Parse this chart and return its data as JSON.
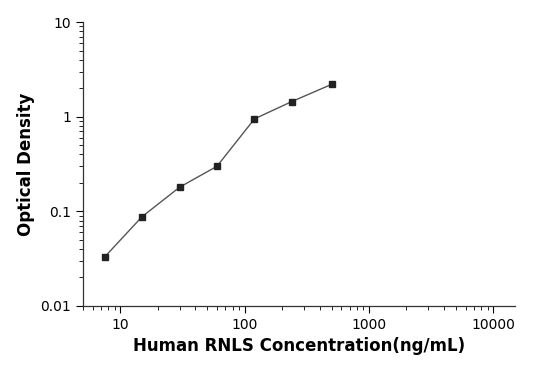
{
  "x": [
    7.5,
    15,
    30,
    60,
    120,
    240,
    500
  ],
  "y": [
    0.033,
    0.088,
    0.18,
    0.3,
    0.95,
    1.45,
    2.2
  ],
  "xlabel": "Human RNLS Concentration(ng/mL)",
  "ylabel": "Optical Density",
  "xlim": [
    5,
    15000
  ],
  "ylim": [
    0.01,
    10
  ],
  "line_color": "#555555",
  "marker_color": "#222222",
  "marker": "s",
  "marker_size": 5,
  "line_width": 1.0,
  "background_color": "#ffffff",
  "xlabel_fontsize": 12,
  "ylabel_fontsize": 12,
  "tick_labelsize": 10,
  "spine_color": "#333333"
}
